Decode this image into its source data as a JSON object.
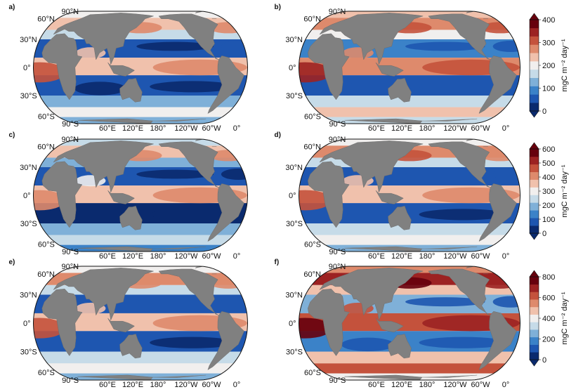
{
  "panels": [
    {
      "label": "a)",
      "tone": -1
    },
    {
      "label": "b)",
      "tone": 0
    },
    {
      "label": "c)",
      "tone": -1.4
    },
    {
      "label": "d)",
      "tone": -0.6
    },
    {
      "label": "e)",
      "tone": -0.7
    },
    {
      "label": "f)",
      "tone": 1.4
    }
  ],
  "map_axes": {
    "lat_labels": [
      "90°N",
      "60°N",
      "30°N",
      "0°",
      "30°S",
      "60°S",
      "90°S"
    ],
    "lon_labels": [
      "60°E",
      "120°E",
      "180°",
      "120°W",
      "60°W",
      "0°"
    ]
  },
  "colorbars": [
    {
      "ticks": [
        "400",
        "300",
        "200",
        "100",
        "0"
      ],
      "unit_label": "mgC m⁻² day⁻¹"
    },
    {
      "ticks": [
        "600",
        "500",
        "400",
        "300",
        "200",
        "100",
        "0"
      ],
      "unit_label": "mgC m⁻² day⁻¹"
    },
    {
      "ticks": [
        "800",
        "600",
        "400",
        "200",
        "0"
      ],
      "unit_label": "mgC m⁻² day⁻¹"
    }
  ],
  "colors": {
    "land": "#808080",
    "scale": [
      "#0a2a6e",
      "#1e56b0",
      "#3b82c8",
      "#7fb0d8",
      "#c6dbe8",
      "#f1efee",
      "#f0c1ac",
      "#de8a6c",
      "#c4523c",
      "#9c2222",
      "#67000d"
    ]
  }
}
